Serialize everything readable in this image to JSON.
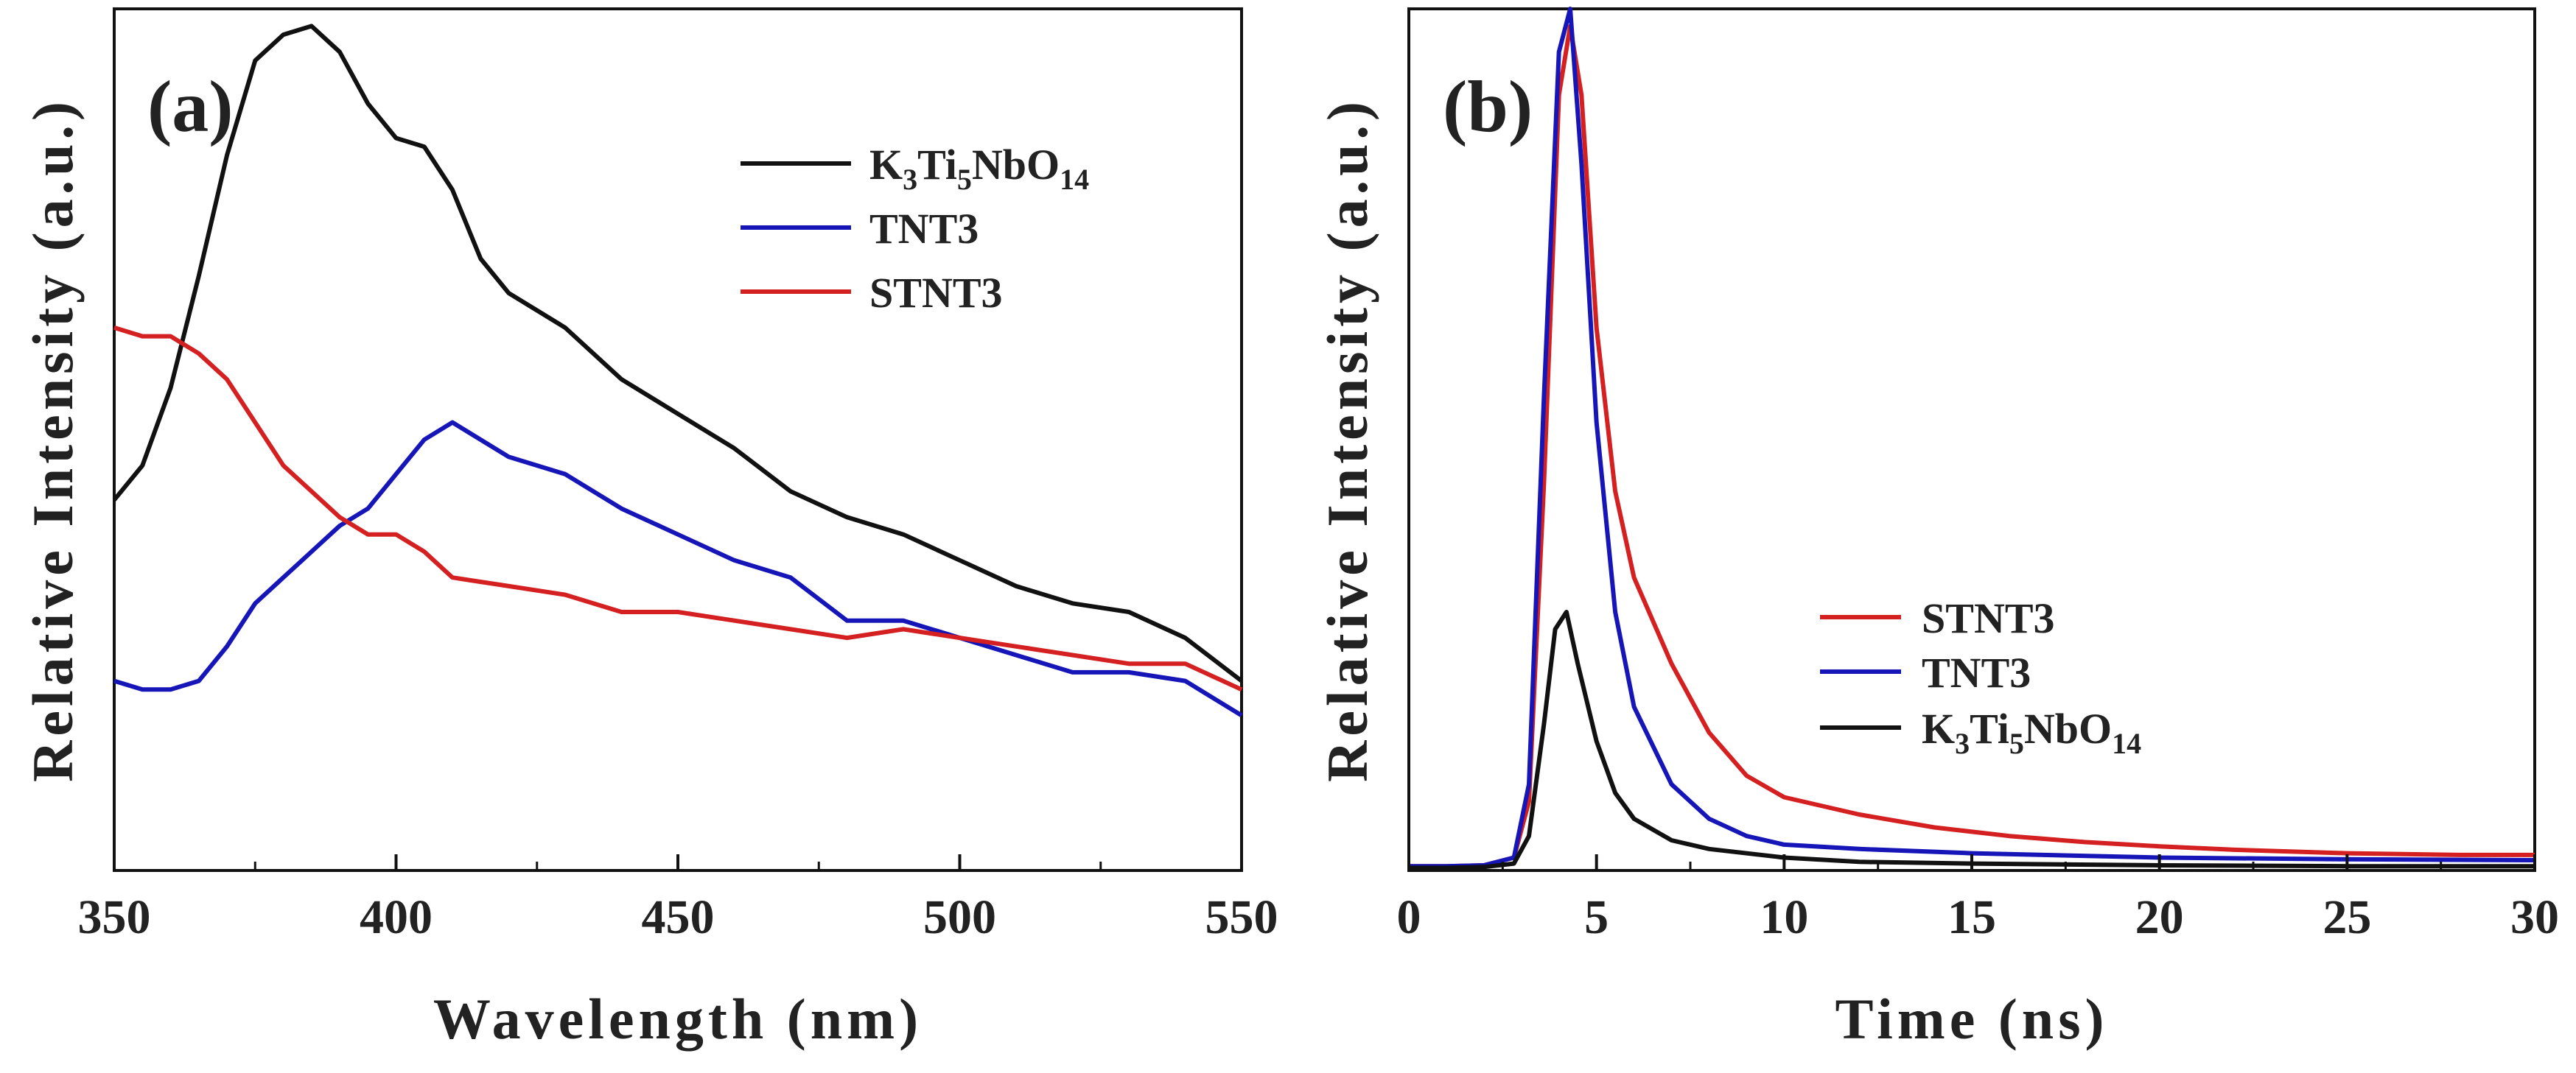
{
  "chart_data": [
    {
      "type": "line",
      "panel_label": "(a)",
      "title": "",
      "xlabel": "Wavelength (nm)",
      "ylabel": "Relative Intensity (a.u.)",
      "xlim": [
        350,
        550
      ],
      "ylim": [
        0,
        1
      ],
      "xticks": [
        350,
        400,
        450,
        500,
        550
      ],
      "xtick_labels": [
        "350",
        "400",
        "450",
        "500",
        "550"
      ],
      "yticks_shown": false,
      "legend_position": "top-right",
      "series": [
        {
          "name": "K3Ti5NbO14",
          "legend": {
            "base": "K",
            "sub1": "3",
            "mid1": "Ti",
            "sub2": "5",
            "mid2": "NbO",
            "sub3": "14"
          },
          "color": "#111111",
          "x": [
            350,
            355,
            360,
            365,
            370,
            375,
            380,
            385,
            390,
            395,
            400,
            405,
            410,
            415,
            420,
            430,
            440,
            450,
            460,
            470,
            480,
            490,
            500,
            510,
            520,
            530,
            540,
            550
          ],
          "y": [
            0.43,
            0.47,
            0.56,
            0.69,
            0.83,
            0.94,
            0.97,
            0.98,
            0.95,
            0.89,
            0.85,
            0.84,
            0.79,
            0.71,
            0.67,
            0.63,
            0.57,
            0.53,
            0.49,
            0.44,
            0.41,
            0.39,
            0.36,
            0.33,
            0.31,
            0.3,
            0.27,
            0.22
          ]
        },
        {
          "name": "TNT3",
          "color": "#1515b8",
          "x": [
            350,
            355,
            360,
            365,
            370,
            375,
            380,
            385,
            390,
            395,
            400,
            405,
            410,
            420,
            430,
            440,
            450,
            460,
            470,
            480,
            490,
            500,
            510,
            520,
            530,
            540,
            550
          ],
          "y": [
            0.22,
            0.21,
            0.21,
            0.22,
            0.26,
            0.31,
            0.34,
            0.37,
            0.4,
            0.42,
            0.46,
            0.5,
            0.52,
            0.48,
            0.46,
            0.42,
            0.39,
            0.36,
            0.34,
            0.29,
            0.29,
            0.27,
            0.25,
            0.23,
            0.23,
            0.22,
            0.18
          ]
        },
        {
          "name": "STNT3",
          "color": "#d42020",
          "x": [
            350,
            355,
            360,
            365,
            370,
            375,
            380,
            385,
            390,
            395,
            400,
            405,
            410,
            420,
            430,
            440,
            450,
            460,
            470,
            480,
            490,
            500,
            510,
            520,
            530,
            540,
            550
          ],
          "y": [
            0.63,
            0.62,
            0.62,
            0.6,
            0.57,
            0.52,
            0.47,
            0.44,
            0.41,
            0.39,
            0.39,
            0.37,
            0.34,
            0.33,
            0.32,
            0.3,
            0.3,
            0.29,
            0.28,
            0.27,
            0.28,
            0.27,
            0.26,
            0.25,
            0.24,
            0.24,
            0.21
          ]
        }
      ]
    },
    {
      "type": "line",
      "panel_label": "(b)",
      "title": "",
      "xlabel": "Time (ns)",
      "ylabel": "Relative Intensity (a.u.)",
      "xlim": [
        0,
        30
      ],
      "ylim": [
        0,
        1
      ],
      "xticks": [
        0,
        5,
        10,
        15,
        20,
        25,
        30
      ],
      "xtick_labels": [
        "0",
        "5",
        "10",
        "15",
        "20",
        "25",
        "30"
      ],
      "yticks_shown": false,
      "legend_position": "center-right",
      "series": [
        {
          "name": "STNT3",
          "color": "#d42020",
          "x": [
            0,
            1,
            2,
            2.8,
            3.2,
            3.6,
            4.0,
            4.3,
            4.6,
            5.0,
            5.5,
            6.0,
            7.0,
            8.0,
            9.0,
            10,
            12,
            14,
            16,
            18,
            20,
            22,
            25,
            28,
            30
          ],
          "y": [
            0.005,
            0.005,
            0.006,
            0.015,
            0.08,
            0.45,
            0.9,
            0.98,
            0.9,
            0.63,
            0.44,
            0.34,
            0.24,
            0.16,
            0.11,
            0.085,
            0.065,
            0.05,
            0.04,
            0.033,
            0.028,
            0.024,
            0.02,
            0.018,
            0.018
          ]
        },
        {
          "name": "TNT3",
          "color": "#1515b8",
          "x": [
            0,
            1,
            2,
            2.8,
            3.2,
            3.6,
            4.0,
            4.3,
            4.6,
            5.0,
            5.5,
            6.0,
            7.0,
            8.0,
            9.0,
            10,
            12,
            15,
            20,
            25,
            30
          ],
          "y": [
            0.005,
            0.005,
            0.006,
            0.015,
            0.1,
            0.55,
            0.95,
            1.0,
            0.82,
            0.52,
            0.3,
            0.19,
            0.1,
            0.06,
            0.04,
            0.03,
            0.025,
            0.02,
            0.015,
            0.013,
            0.012
          ]
        },
        {
          "name": "K3Ti5NbO14",
          "legend": {
            "base": "K",
            "sub1": "3",
            "mid1": "Ti",
            "sub2": "5",
            "mid2": "NbO",
            "sub3": "14"
          },
          "color": "#111111",
          "x": [
            0,
            1,
            2,
            2.8,
            3.2,
            3.6,
            3.9,
            4.2,
            4.5,
            5.0,
            5.5,
            6.0,
            7.0,
            8.0,
            10,
            12,
            15,
            20,
            25,
            30
          ],
          "y": [
            0.003,
            0.003,
            0.004,
            0.008,
            0.04,
            0.17,
            0.28,
            0.3,
            0.24,
            0.15,
            0.09,
            0.06,
            0.035,
            0.025,
            0.015,
            0.01,
            0.008,
            0.006,
            0.005,
            0.005
          ]
        }
      ]
    }
  ]
}
